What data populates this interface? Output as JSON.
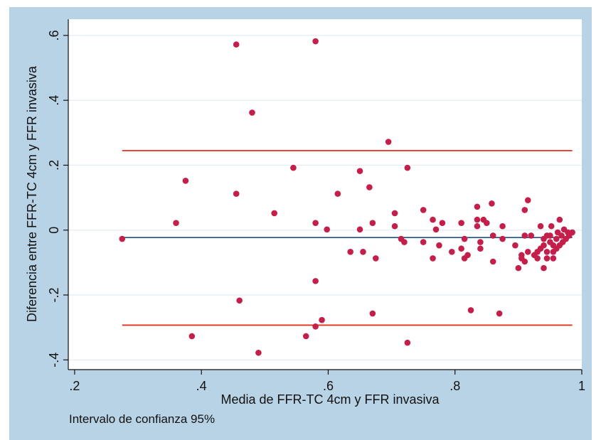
{
  "chart_data": {
    "type": "scatter",
    "xlabel": "Media de FFR-TC 4cm y FFR invasiva",
    "ylabel": "Diferencia entre FFR-TC 4cm y FFR invasiva",
    "note": "Intervalo de confianza 95%",
    "xlim": [
      0.19,
      1.0
    ],
    "ylim": [
      -0.43,
      0.65
    ],
    "xticks": [
      0.2,
      0.4,
      0.6,
      0.8,
      1
    ],
    "xtick_labels": [
      ".2",
      ".4",
      ".6",
      ".8",
      "1"
    ],
    "yticks": [
      -0.4,
      -0.2,
      0,
      0.2,
      0.4,
      0.6
    ],
    "ytick_labels": [
      "-.4",
      "-.2",
      "0",
      ".2",
      ".4",
      ".6"
    ],
    "grid": "horizontal",
    "bias_line": {
      "y": -0.023,
      "x": [
        0.275,
        0.985
      ],
      "color": "#1f4f8a"
    },
    "limit_lines": [
      {
        "y": 0.245,
        "x": [
          0.275,
          0.985
        ],
        "color": "#e0301e"
      },
      {
        "y": -0.293,
        "x": [
          0.275,
          0.985
        ],
        "color": "#e0301e"
      }
    ],
    "point_color": "#c41e4a",
    "points": [
      [
        0.275,
        -0.027
      ],
      [
        0.36,
        0.022
      ],
      [
        0.375,
        0.152
      ],
      [
        0.385,
        -0.327
      ],
      [
        0.455,
        0.572
      ],
      [
        0.455,
        0.112
      ],
      [
        0.46,
        -0.217
      ],
      [
        0.48,
        0.362
      ],
      [
        0.49,
        -0.378
      ],
      [
        0.515,
        0.052
      ],
      [
        0.545,
        0.192
      ],
      [
        0.565,
        -0.327
      ],
      [
        0.58,
        0.582
      ],
      [
        0.58,
        0.022
      ],
      [
        0.58,
        -0.157
      ],
      [
        0.58,
        -0.297
      ],
      [
        0.59,
        -0.277
      ],
      [
        0.598,
        0.002
      ],
      [
        0.615,
        0.112
      ],
      [
        0.635,
        -0.067
      ],
      [
        0.65,
        0.182
      ],
      [
        0.65,
        0.002
      ],
      [
        0.655,
        -0.067
      ],
      [
        0.665,
        0.132
      ],
      [
        0.67,
        -0.257
      ],
      [
        0.67,
        0.022
      ],
      [
        0.675,
        -0.087
      ],
      [
        0.695,
        0.272
      ],
      [
        0.705,
        0.052
      ],
      [
        0.705,
        0.012
      ],
      [
        0.715,
        -0.027
      ],
      [
        0.72,
        -0.037
      ],
      [
        0.725,
        0.192
      ],
      [
        0.725,
        -0.347
      ],
      [
        0.75,
        0.062
      ],
      [
        0.75,
        -0.037
      ],
      [
        0.765,
        0.032
      ],
      [
        0.765,
        -0.087
      ],
      [
        0.77,
        0.002
      ],
      [
        0.775,
        -0.047
      ],
      [
        0.78,
        0.022
      ],
      [
        0.795,
        -0.067
      ],
      [
        0.81,
        0.022
      ],
      [
        0.81,
        -0.057
      ],
      [
        0.815,
        -0.087
      ],
      [
        0.815,
        -0.027
      ],
      [
        0.82,
        -0.077
      ],
      [
        0.825,
        -0.247
      ],
      [
        0.835,
        0.072
      ],
      [
        0.835,
        0.032
      ],
      [
        0.835,
        0.012
      ],
      [
        0.84,
        -0.037
      ],
      [
        0.84,
        -0.057
      ],
      [
        0.845,
        0.032
      ],
      [
        0.85,
        0.022
      ],
      [
        0.858,
        0.082
      ],
      [
        0.86,
        -0.017
      ],
      [
        0.86,
        -0.097
      ],
      [
        0.87,
        -0.257
      ],
      [
        0.875,
        0.012
      ],
      [
        0.875,
        -0.027
      ],
      [
        0.895,
        -0.047
      ],
      [
        0.9,
        -0.117
      ],
      [
        0.905,
        -0.077
      ],
      [
        0.905,
        -0.087
      ],
      [
        0.91,
        0.062
      ],
      [
        0.91,
        -0.017
      ],
      [
        0.91,
        -0.097
      ],
      [
        0.915,
        0.092
      ],
      [
        0.915,
        -0.067
      ],
      [
        0.92,
        -0.017
      ],
      [
        0.925,
        -0.077
      ],
      [
        0.93,
        -0.087
      ],
      [
        0.93,
        -0.067
      ],
      [
        0.935,
        0.012
      ],
      [
        0.935,
        -0.057
      ],
      [
        0.94,
        -0.027
      ],
      [
        0.94,
        -0.117
      ],
      [
        0.94,
        -0.047
      ],
      [
        0.945,
        -0.017
      ],
      [
        0.945,
        -0.087
      ],
      [
        0.945,
        -0.067
      ],
      [
        0.95,
        -0.037
      ],
      [
        0.95,
        -0.017
      ],
      [
        0.952,
        0.012
      ],
      [
        0.955,
        -0.047
      ],
      [
        0.955,
        -0.087
      ],
      [
        0.955,
        -0.067
      ],
      [
        0.96,
        -0.027
      ],
      [
        0.96,
        -0.057
      ],
      [
        0.962,
        -0.007
      ],
      [
        0.965,
        0.032
      ],
      [
        0.965,
        -0.047
      ],
      [
        0.968,
        -0.017
      ],
      [
        0.97,
        -0.037
      ],
      [
        0.972,
        0.002
      ],
      [
        0.975,
        -0.027
      ],
      [
        0.978,
        -0.007
      ],
      [
        0.98,
        -0.017
      ],
      [
        0.985,
        -0.007
      ]
    ]
  }
}
